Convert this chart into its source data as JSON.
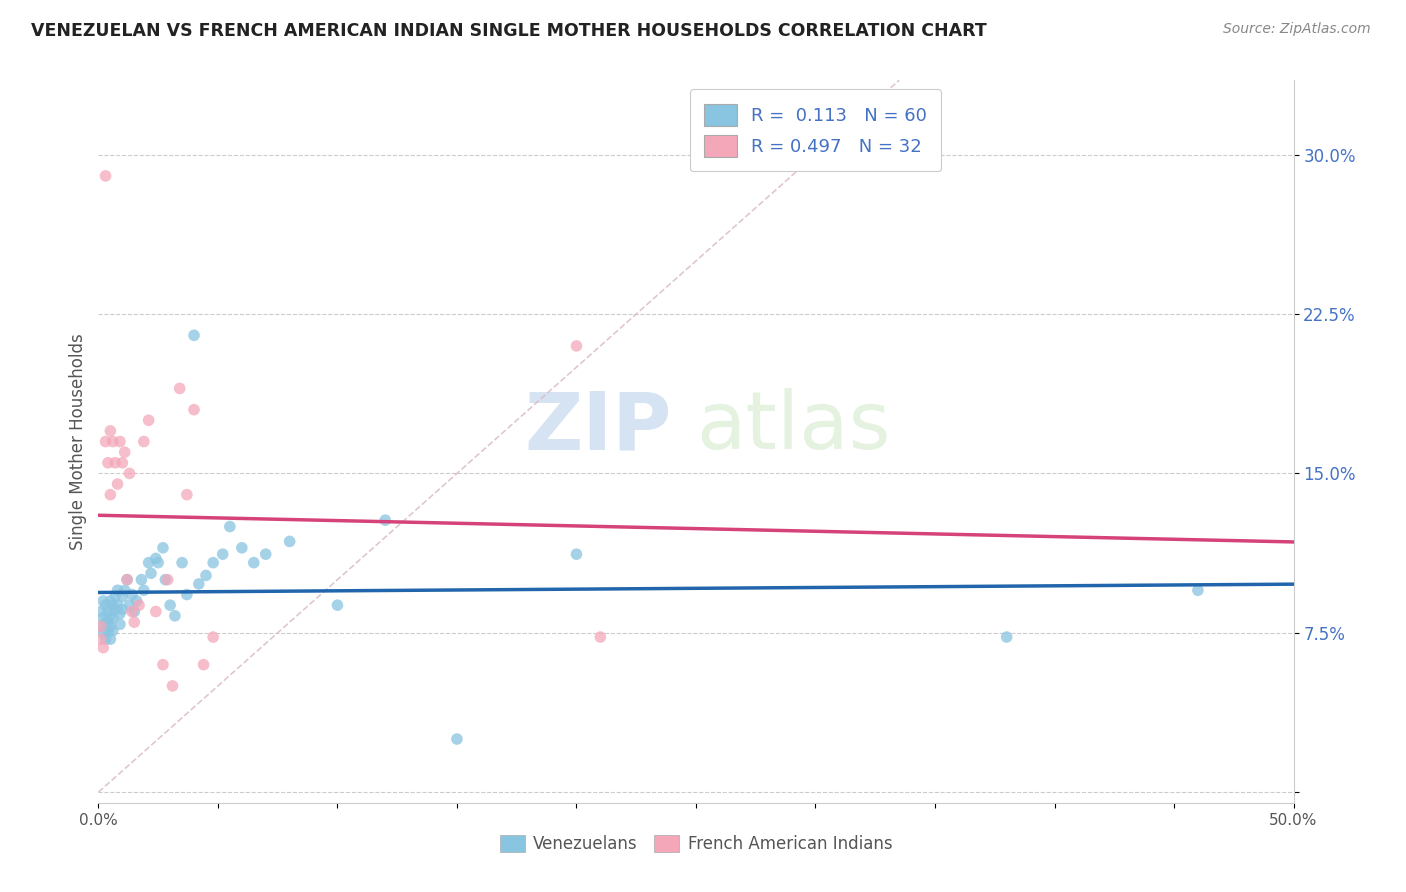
{
  "title": "VENEZUELAN VS FRENCH AMERICAN INDIAN SINGLE MOTHER HOUSEHOLDS CORRELATION CHART",
  "source": "Source: ZipAtlas.com",
  "ylabel": "Single Mother Households",
  "xlim": [
    0,
    0.5
  ],
  "ylim": [
    -0.005,
    0.335
  ],
  "xticks": [
    0.0,
    0.05,
    0.1,
    0.15,
    0.2,
    0.25,
    0.3,
    0.35,
    0.4,
    0.45,
    0.5
  ],
  "xticklabels_shown": {
    "0": "0.0%",
    "10": "50.0%"
  },
  "yticks": [
    0.0,
    0.075,
    0.15,
    0.225,
    0.3
  ],
  "yticklabels": [
    "",
    "7.5%",
    "15.0%",
    "22.5%",
    "30.0%"
  ],
  "blue_color": "#89c4e1",
  "pink_color": "#f4a7b9",
  "blue_line_color": "#2166ac",
  "pink_line_color": "#d6427a",
  "watermark_zip": "ZIP",
  "watermark_atlas": "atlas",
  "venezuelan_x": [
    0.001,
    0.001,
    0.002,
    0.002,
    0.002,
    0.003,
    0.003,
    0.003,
    0.004,
    0.004,
    0.004,
    0.005,
    0.005,
    0.005,
    0.005,
    0.006,
    0.006,
    0.006,
    0.007,
    0.007,
    0.008,
    0.008,
    0.009,
    0.009,
    0.01,
    0.01,
    0.011,
    0.012,
    0.013,
    0.014,
    0.015,
    0.016,
    0.018,
    0.019,
    0.021,
    0.022,
    0.024,
    0.025,
    0.027,
    0.028,
    0.03,
    0.032,
    0.035,
    0.037,
    0.04,
    0.042,
    0.045,
    0.048,
    0.052,
    0.055,
    0.06,
    0.065,
    0.07,
    0.08,
    0.1,
    0.12,
    0.15,
    0.2,
    0.38,
    0.46
  ],
  "venezuelan_y": [
    0.085,
    0.078,
    0.082,
    0.075,
    0.09,
    0.08,
    0.088,
    0.072,
    0.085,
    0.08,
    0.076,
    0.09,
    0.083,
    0.078,
    0.072,
    0.088,
    0.082,
    0.076,
    0.092,
    0.086,
    0.095,
    0.088,
    0.084,
    0.079,
    0.092,
    0.086,
    0.095,
    0.1,
    0.088,
    0.093,
    0.085,
    0.09,
    0.1,
    0.095,
    0.108,
    0.103,
    0.11,
    0.108,
    0.115,
    0.1,
    0.088,
    0.083,
    0.108,
    0.093,
    0.215,
    0.098,
    0.102,
    0.108,
    0.112,
    0.125,
    0.115,
    0.108,
    0.112,
    0.118,
    0.088,
    0.128,
    0.025,
    0.112,
    0.073,
    0.095
  ],
  "french_x": [
    0.001,
    0.001,
    0.002,
    0.003,
    0.003,
    0.004,
    0.005,
    0.005,
    0.006,
    0.007,
    0.008,
    0.009,
    0.01,
    0.011,
    0.012,
    0.013,
    0.014,
    0.015,
    0.017,
    0.019,
    0.021,
    0.024,
    0.027,
    0.029,
    0.031,
    0.034,
    0.037,
    0.04,
    0.044,
    0.048,
    0.2,
    0.21
  ],
  "french_y": [
    0.078,
    0.072,
    0.068,
    0.29,
    0.165,
    0.155,
    0.17,
    0.14,
    0.165,
    0.155,
    0.145,
    0.165,
    0.155,
    0.16,
    0.1,
    0.15,
    0.085,
    0.08,
    0.088,
    0.165,
    0.175,
    0.085,
    0.06,
    0.1,
    0.05,
    0.19,
    0.14,
    0.18,
    0.06,
    0.073,
    0.21,
    0.073
  ]
}
